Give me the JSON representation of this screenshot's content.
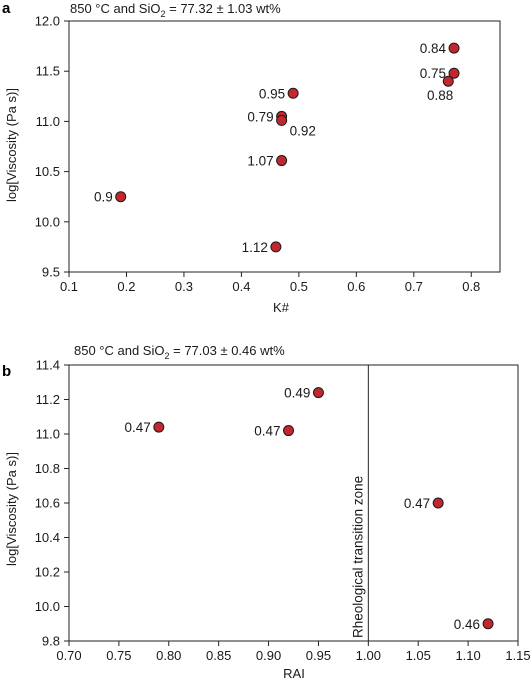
{
  "chart_data": [
    {
      "panel": "a",
      "type": "scatter",
      "title_main": "850 °C and SiO",
      "title_sub": "2",
      "title_rest": " = 77.32 ± 1.03 wt%",
      "xlabel": "K#",
      "ylabel": "log[Viscosity (Pa s)]",
      "xlim": [
        0.1,
        0.85
      ],
      "ylim": [
        9.5,
        12.0
      ],
      "xticks": [
        "0.1",
        "0.2",
        "0.3",
        "0.4",
        "0.5",
        "0.6",
        "0.7",
        "0.8"
      ],
      "xtick_values": [
        0.1,
        0.2,
        0.3,
        0.4,
        0.5,
        0.6,
        0.7,
        0.8
      ],
      "yticks": [
        "9.5",
        "10.0",
        "10.5",
        "11.0",
        "11.5",
        "12.0"
      ],
      "ytick_values": [
        9.5,
        10.0,
        10.5,
        11.0,
        11.5,
        12.0
      ],
      "marker_color": "#c1272d",
      "points": [
        {
          "x": 0.19,
          "y": 10.25,
          "label": "0.9",
          "side": "left"
        },
        {
          "x": 0.46,
          "y": 9.75,
          "label": "1.12",
          "side": "left"
        },
        {
          "x": 0.47,
          "y": 10.61,
          "label": "1.07",
          "side": "left"
        },
        {
          "x": 0.47,
          "y": 11.05,
          "label": "0.79",
          "side": "left"
        },
        {
          "x": 0.47,
          "y": 11.01,
          "label": "0.92",
          "side": "below-right"
        },
        {
          "x": 0.49,
          "y": 11.28,
          "label": "0.95",
          "side": "left"
        },
        {
          "x": 0.77,
          "y": 11.73,
          "label": "0.84",
          "side": "left"
        },
        {
          "x": 0.77,
          "y": 11.48,
          "label": "0.75",
          "side": "left"
        },
        {
          "x": 0.76,
          "y": 11.4,
          "label": "0.88",
          "side": "below-left"
        }
      ]
    },
    {
      "panel": "b",
      "type": "scatter",
      "title_main": "850 °C and SiO",
      "title_sub": "2",
      "title_rest": " = 77.03 ± 0.46 wt%",
      "xlabel": "RAI",
      "ylabel": "log[Viscosity (Pa s)]",
      "xlim": [
        0.7,
        1.15
      ],
      "ylim": [
        9.8,
        11.4
      ],
      "xticks": [
        "0.70",
        "0.75",
        "0.80",
        "0.85",
        "0.90",
        "0.95",
        "1.00",
        "1.05",
        "1.10",
        "1.15"
      ],
      "xtick_values": [
        0.7,
        0.75,
        0.8,
        0.85,
        0.9,
        0.95,
        1.0,
        1.05,
        1.1,
        1.15
      ],
      "yticks": [
        "9.8",
        "10.0",
        "10.2",
        "10.4",
        "10.6",
        "10.8",
        "11.0",
        "11.2",
        "11.4"
      ],
      "ytick_values": [
        9.8,
        10.0,
        10.2,
        10.4,
        10.6,
        10.8,
        11.0,
        11.2,
        11.4
      ],
      "marker_color": "#c1272d",
      "vline": {
        "x": 1.0,
        "label": "Rheological transition zone"
      },
      "points": [
        {
          "x": 0.79,
          "y": 11.04,
          "label": "0.47",
          "side": "left"
        },
        {
          "x": 0.92,
          "y": 11.02,
          "label": "0.47",
          "side": "left"
        },
        {
          "x": 0.95,
          "y": 11.24,
          "label": "0.49",
          "side": "left"
        },
        {
          "x": 1.07,
          "y": 10.6,
          "label": "0.47",
          "side": "left"
        },
        {
          "x": 1.12,
          "y": 9.9,
          "label": "0.46",
          "side": "left"
        }
      ]
    }
  ]
}
